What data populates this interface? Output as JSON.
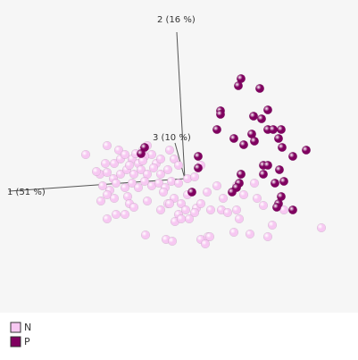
{
  "chart_data": {
    "type": "scatter",
    "axis_labels": [
      "1 (51 %)",
      "2 (16 %)",
      "3 (10 %)"
    ],
    "xlim": [
      0,
      401
    ],
    "ylim": [
      403,
      0
    ],
    "series": [
      {
        "name": "N",
        "color": "#f7c8f2",
        "x": [
          96,
          120,
          133,
          118,
          128,
          135,
          140,
          148,
          155,
          160,
          165,
          170,
          175,
          180,
          190,
          195,
          200,
          112,
          120,
          127,
          135,
          142,
          150,
          158,
          165,
          172,
          180,
          188,
          115,
          123,
          130,
          140,
          148,
          155,
          162,
          170,
          178,
          185,
          192,
          200,
          210,
          218,
          225,
          113,
          120,
          128,
          143,
          145,
          165,
          183,
          188,
          195,
          203,
          210,
          220,
          232,
          243,
          250,
          265,
          270,
          273,
          285,
          120,
          130,
          140,
          150,
          180,
          190,
          200,
          208,
          218,
          225,
          236,
          248,
          255,
          265,
          268,
          196,
          203,
          212,
          163,
          186,
          193,
          225,
          233,
          230,
          235,
          262,
          280,
          300,
          305,
          360,
          318,
          295,
          288,
          162,
          160,
          145,
          152,
          108
        ],
        "y": [
          173,
          163,
          168,
          183,
          183,
          178,
          173,
          178,
          183,
          168,
          163,
          173,
          183,
          178,
          168,
          178,
          185,
          195,
          193,
          200,
          195,
          190,
          195,
          190,
          195,
          188,
          195,
          190,
          208,
          213,
          205,
          210,
          205,
          210,
          203,
          208,
          205,
          210,
          203,
          205,
          200,
          198,
          185,
          225,
          218,
          222,
          220,
          228,
          225,
          215,
          228,
          222,
          228,
          218,
          233,
          215,
          208,
          222,
          208,
          195,
          218,
          205,
          245,
          240,
          240,
          232,
          235,
          228,
          240,
          235,
          238,
          228,
          235,
          235,
          238,
          235,
          245,
          248,
          245,
          245,
          263,
          268,
          270,
          268,
          265,
          273,
          265,
          260,
          262,
          265,
          252,
          255,
          235,
          230,
          222,
          175,
          180,
          185,
          172,
          192
        ]
      },
      {
        "name": "P",
        "color": "#800060",
        "x": [
          270,
          267,
          291,
          247,
          247,
          284,
          293,
          300,
          243,
          262,
          273,
          282,
          285,
          300,
          306,
          315,
          312,
          316,
          328,
          343,
          295,
          300,
          313,
          295,
          308,
          318,
          270,
          268,
          265,
          260,
          315,
          312,
          310,
          328,
          222,
          222,
          215,
          162,
          158
        ],
        "y": [
          88,
          96,
          99,
          124,
          128,
          130,
          133,
          123,
          145,
          155,
          162,
          150,
          158,
          145,
          145,
          145,
          155,
          165,
          175,
          168,
          185,
          185,
          190,
          195,
          205,
          203,
          195,
          205,
          210,
          215,
          220,
          228,
          232,
          235,
          175,
          188,
          215,
          165,
          172
        ]
      }
    ]
  }
}
